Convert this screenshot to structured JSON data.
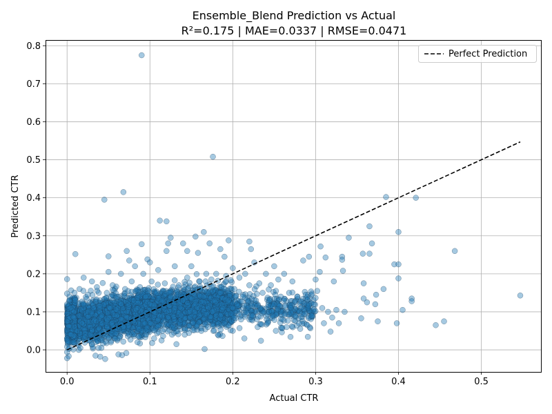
{
  "chart_data": {
    "type": "scatter",
    "title": "Ensemble_Blend Prediction vs Actual",
    "subtitle": "R²=0.175 | MAE=0.0337 | RMSE=0.0471",
    "xlabel": "Actual CTR",
    "ylabel": "Predicted CTR",
    "xlim": [
      -0.026,
      0.572
    ],
    "ylim": [
      -0.058,
      0.815
    ],
    "xticks": [
      0.0,
      0.1,
      0.2,
      0.3,
      0.4,
      0.5
    ],
    "xtick_labels": [
      "0.0",
      "0.1",
      "0.2",
      "0.3",
      "0.4",
      "0.5"
    ],
    "yticks": [
      0.0,
      0.1,
      0.2,
      0.3,
      0.4,
      0.5,
      0.6,
      0.7,
      0.8
    ],
    "ytick_labels": [
      "0.0",
      "0.1",
      "0.2",
      "0.3",
      "0.4",
      "0.5",
      "0.6",
      "0.7",
      "0.8"
    ],
    "grid": true,
    "legend_position": "top-right",
    "colors": {
      "points": "#1f77b4",
      "reference_line": "#000000"
    },
    "reference_line": {
      "name": "Perfect Prediction",
      "from": [
        0.0,
        0.0
      ],
      "to": [
        0.547,
        0.547
      ],
      "style": "dashed"
    },
    "series": [
      {
        "points": [
          [
            0.0,
            0.186
          ],
          [
            0.0,
            0.148
          ],
          [
            0.0,
            0.12
          ],
          [
            0.0,
            0.095
          ],
          [
            0.0,
            0.075
          ],
          [
            0.0,
            0.052
          ],
          [
            0.0,
            0.03
          ],
          [
            0.0,
            0.008
          ],
          [
            0.0,
            -0.006
          ],
          [
            0.0,
            -0.022
          ],
          [
            0.002,
            0.062
          ],
          [
            0.004,
            0.11
          ],
          [
            0.005,
            0.04
          ],
          [
            0.008,
            0.085
          ],
          [
            0.008,
            0.02
          ],
          [
            0.01,
            0.13
          ],
          [
            0.01,
            0.252
          ],
          [
            0.012,
            0.05
          ],
          [
            0.014,
            0.09
          ],
          [
            0.015,
            0.16
          ],
          [
            0.016,
            0.005
          ],
          [
            0.018,
            0.07
          ],
          [
            0.02,
            0.12
          ],
          [
            0.02,
            0.19
          ],
          [
            0.022,
            0.035
          ],
          [
            0.025,
            0.1
          ],
          [
            0.025,
            0.145
          ],
          [
            0.028,
            0.06
          ],
          [
            0.03,
            0.18
          ],
          [
            0.03,
            0.015
          ],
          [
            0.032,
            0.11
          ],
          [
            0.035,
            0.075
          ],
          [
            0.036,
            0.165
          ],
          [
            0.038,
            0.005
          ],
          [
            0.04,
            0.13
          ],
          [
            0.04,
            -0.018
          ],
          [
            0.042,
            0.09
          ],
          [
            0.044,
            0.05
          ],
          [
            0.045,
            0.395
          ],
          [
            0.046,
            -0.024
          ],
          [
            0.048,
            0.15
          ],
          [
            0.05,
            0.246
          ],
          [
            0.05,
            0.205
          ],
          [
            0.052,
            0.11
          ],
          [
            0.054,
            0.07
          ],
          [
            0.055,
            0.17
          ],
          [
            0.058,
            0.03
          ],
          [
            0.06,
            0.14
          ],
          [
            0.06,
            0.09
          ],
          [
            0.062,
            -0.012
          ],
          [
            0.065,
            0.2
          ],
          [
            0.065,
            0.12
          ],
          [
            0.068,
            0.415
          ],
          [
            0.068,
            0.06
          ],
          [
            0.07,
            0.16
          ],
          [
            0.072,
            0.26
          ],
          [
            0.072,
            0.1
          ],
          [
            0.075,
            0.235
          ],
          [
            0.075,
            0.04
          ],
          [
            0.078,
            0.18
          ],
          [
            0.08,
            0.13
          ],
          [
            0.08,
            0.075
          ],
          [
            0.082,
            0.22
          ],
          [
            0.085,
            0.11
          ],
          [
            0.085,
            0.02
          ],
          [
            0.088,
            0.165
          ],
          [
            0.09,
            0.278
          ],
          [
            0.09,
            0.775
          ],
          [
            0.09,
            0.09
          ],
          [
            0.092,
            0.2
          ],
          [
            0.095,
            0.14
          ],
          [
            0.095,
            0.05
          ],
          [
            0.097,
            0.238
          ],
          [
            0.1,
            0.23
          ],
          [
            0.1,
            0.12
          ],
          [
            0.1,
            0.07
          ],
          [
            0.102,
            0.18
          ],
          [
            0.105,
            0.1
          ],
          [
            0.105,
            0.03
          ],
          [
            0.108,
            0.15
          ],
          [
            0.11,
            0.21
          ],
          [
            0.11,
            0.08
          ],
          [
            0.112,
            0.34
          ],
          [
            0.115,
            0.13
          ],
          [
            0.115,
            0.05
          ],
          [
            0.118,
            0.175
          ],
          [
            0.12,
            0.338
          ],
          [
            0.12,
            0.1
          ],
          [
            0.12,
            0.26
          ],
          [
            0.122,
            0.28
          ],
          [
            0.125,
            0.295
          ],
          [
            0.125,
            0.14
          ],
          [
            0.128,
            0.065
          ],
          [
            0.13,
            0.22
          ],
          [
            0.13,
            0.11
          ],
          [
            0.132,
            0.015
          ],
          [
            0.135,
            0.17
          ],
          [
            0.138,
            0.09
          ],
          [
            0.14,
            0.28
          ],
          [
            0.14,
            0.13
          ],
          [
            0.142,
            0.04
          ],
          [
            0.145,
            0.26
          ],
          [
            0.145,
            0.19
          ],
          [
            0.148,
            0.1
          ],
          [
            0.15,
            0.22
          ],
          [
            0.15,
            0.15
          ],
          [
            0.152,
            0.07
          ],
          [
            0.155,
            0.298
          ],
          [
            0.155,
            0.12
          ],
          [
            0.158,
            0.255
          ],
          [
            0.16,
            0.18
          ],
          [
            0.16,
            0.09
          ],
          [
            0.162,
            0.05
          ],
          [
            0.165,
            0.31
          ],
          [
            0.165,
            0.14
          ],
          [
            0.166,
            0.002
          ],
          [
            0.168,
            0.2
          ],
          [
            0.17,
            0.11
          ],
          [
            0.17,
            0.06
          ],
          [
            0.172,
            0.28
          ],
          [
            0.175,
            0.165
          ],
          [
            0.176,
            0.508
          ],
          [
            0.178,
            0.13
          ],
          [
            0.18,
            0.09
          ],
          [
            0.18,
            0.2
          ],
          [
            0.182,
            0.04
          ],
          [
            0.185,
            0.265
          ],
          [
            0.185,
            0.15
          ],
          [
            0.188,
            0.11
          ],
          [
            0.19,
            0.07
          ],
          [
            0.19,
            0.245
          ],
          [
            0.192,
            0.18
          ],
          [
            0.195,
            0.288
          ],
          [
            0.195,
            0.13
          ],
          [
            0.198,
            0.095
          ],
          [
            0.2,
            0.215
          ],
          [
            0.2,
            0.05
          ],
          [
            0.202,
            0.16
          ],
          [
            0.205,
            0.12
          ],
          [
            0.208,
            0.19
          ],
          [
            0.21,
            0.08
          ],
          [
            0.212,
            0.14
          ],
          [
            0.214,
            0.03
          ],
          [
            0.215,
            0.2
          ],
          [
            0.218,
            0.11
          ],
          [
            0.22,
            0.285
          ],
          [
            0.22,
            0.17
          ],
          [
            0.222,
            0.265
          ],
          [
            0.224,
            0.09
          ],
          [
            0.226,
            0.23
          ],
          [
            0.228,
            0.13
          ],
          [
            0.23,
            0.06
          ],
          [
            0.232,
            0.175
          ],
          [
            0.234,
            0.024
          ],
          [
            0.236,
            0.15
          ],
          [
            0.238,
            0.1
          ],
          [
            0.24,
            0.2
          ],
          [
            0.242,
            0.07
          ],
          [
            0.244,
            0.13
          ],
          [
            0.246,
            0.17
          ],
          [
            0.248,
            0.09
          ],
          [
            0.25,
            0.22
          ],
          [
            0.25,
            0.12
          ],
          [
            0.252,
            0.05
          ],
          [
            0.255,
            0.185
          ],
          [
            0.258,
            0.14
          ],
          [
            0.26,
            0.08
          ],
          [
            0.262,
            0.2
          ],
          [
            0.265,
            0.06
          ],
          [
            0.268,
            0.15
          ],
          [
            0.27,
            0.11
          ],
          [
            0.272,
            0.18
          ],
          [
            0.275,
            0.09
          ],
          [
            0.278,
            0.14
          ],
          [
            0.28,
            0.07
          ],
          [
            0.282,
            0.11
          ],
          [
            0.285,
            0.235
          ],
          [
            0.288,
            0.145
          ],
          [
            0.29,
            0.065
          ],
          [
            0.292,
            0.245
          ],
          [
            0.295,
            0.09
          ],
          [
            0.298,
            0.12
          ],
          [
            0.3,
            0.185
          ],
          [
            0.302,
            0.155
          ],
          [
            0.305,
            0.205
          ],
          [
            0.306,
            0.272
          ],
          [
            0.308,
            0.11
          ],
          [
            0.31,
            0.07
          ],
          [
            0.312,
            0.243
          ],
          [
            0.315,
            0.1
          ],
          [
            0.318,
            0.048
          ],
          [
            0.32,
            0.085
          ],
          [
            0.322,
            0.18
          ],
          [
            0.325,
            0.105
          ],
          [
            0.328,
            0.07
          ],
          [
            0.332,
            0.245
          ],
          [
            0.332,
            0.237
          ],
          [
            0.333,
            0.208
          ],
          [
            0.335,
            0.1
          ],
          [
            0.34,
            0.295
          ],
          [
            0.355,
            0.083
          ],
          [
            0.357,
            0.253
          ],
          [
            0.358,
            0.135
          ],
          [
            0.358,
            0.175
          ],
          [
            0.362,
            0.125
          ],
          [
            0.365,
            0.325
          ],
          [
            0.365,
            0.253
          ],
          [
            0.368,
            0.28
          ],
          [
            0.372,
            0.12
          ],
          [
            0.373,
            0.145
          ],
          [
            0.375,
            0.075
          ],
          [
            0.382,
            0.16
          ],
          [
            0.385,
            0.402
          ],
          [
            0.395,
            0.225
          ],
          [
            0.398,
            0.07
          ],
          [
            0.4,
            0.31
          ],
          [
            0.4,
            0.188
          ],
          [
            0.4,
            0.225
          ],
          [
            0.405,
            0.105
          ],
          [
            0.416,
            0.135
          ],
          [
            0.416,
            0.128
          ],
          [
            0.421,
            0.4
          ],
          [
            0.445,
            0.065
          ],
          [
            0.455,
            0.075
          ],
          [
            0.468,
            0.26
          ],
          [
            0.547,
            0.143
          ]
        ],
        "dense_regions": [
          {
            "x": [
              0.0,
              0.1
            ],
            "y_center_start": 0.07,
            "y_center_end": 0.1,
            "spread": 0.045,
            "count": 2200
          },
          {
            "x": [
              0.08,
              0.2
            ],
            "y_center_start": 0.1,
            "y_center_end": 0.115,
            "spread": 0.045,
            "count": 2100
          },
          {
            "x": [
              0.2,
              0.3
            ],
            "y_center_start": 0.11,
            "y_center_end": 0.105,
            "spread": 0.04,
            "count": 320
          },
          {
            "x": [
              0.0,
              0.01
            ],
            "y_center_start": 0.06,
            "y_center_end": 0.08,
            "spread": 0.05,
            "count": 400
          }
        ]
      }
    ]
  }
}
